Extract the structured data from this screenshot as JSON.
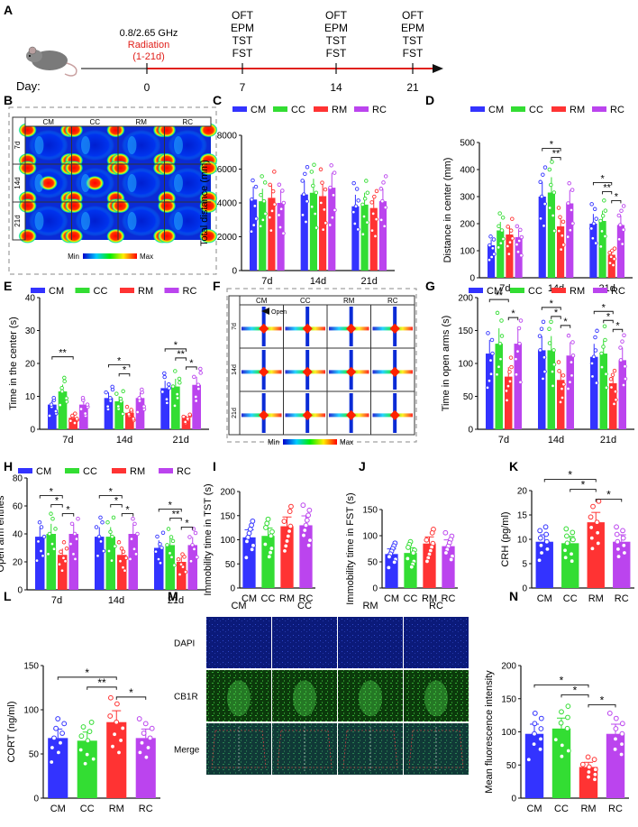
{
  "colors": {
    "CM": "#3333ff",
    "CC": "#33dd33",
    "RM": "#ff3333",
    "RC": "#bb44ee",
    "accent": "#e0201b"
  },
  "groups": [
    "CM",
    "CC",
    "RM",
    "RC"
  ],
  "timeline": {
    "panel_label": "A",
    "day_label": "Day:",
    "freq": "0.8/2.65 GHz",
    "radiation": "Radiation",
    "radiation_days": "(1-21d)",
    "ticks": [
      "0",
      "7",
      "14",
      "21"
    ],
    "tests": [
      "OFT",
      "EPM",
      "TST",
      "FST"
    ]
  },
  "heatmap_B": {
    "panel_label": "B",
    "cols": [
      "CM",
      "CC",
      "RM",
      "RC"
    ],
    "rows": [
      "7d",
      "14d",
      "21d"
    ],
    "legend_min": "Min",
    "legend_max": "Max"
  },
  "maze_F": {
    "panel_label": "F",
    "cols": [
      "CM",
      "CC",
      "RM",
      "RC"
    ],
    "rows": [
      "7d",
      "14d",
      "21d"
    ],
    "open_label": "Open",
    "legend_min": "Min",
    "legend_max": "Max"
  },
  "micro_M": {
    "panel_label": "M",
    "cols": [
      "CM",
      "CC",
      "RM",
      "RC"
    ],
    "rows": [
      "DAPI",
      "CB1R",
      "Merge"
    ]
  },
  "chart_data": [
    {
      "panel": "C",
      "type": "bar",
      "ylabel": "Total distance (mm)",
      "categories": [
        "7d",
        "14d",
        "21d"
      ],
      "ylim": [
        0,
        8000
      ],
      "yticks": [
        0,
        2000,
        4000,
        6000,
        8000
      ],
      "series": [
        {
          "name": "CM",
          "values": [
            4200,
            4500,
            3800
          ]
        },
        {
          "name": "CC",
          "values": [
            4100,
            4600,
            3900
          ]
        },
        {
          "name": "RM",
          "values": [
            4300,
            4400,
            3700
          ]
        },
        {
          "name": "RC",
          "values": [
            4000,
            4900,
            4100
          ]
        }
      ],
      "sig": []
    },
    {
      "panel": "D",
      "type": "bar",
      "ylabel": "Distance in center (mm)",
      "categories": [
        "7d",
        "14d",
        "21d"
      ],
      "ylim": [
        0,
        500
      ],
      "yticks": [
        0,
        100,
        200,
        300,
        400,
        500
      ],
      "series": [
        {
          "name": "CM",
          "values": [
            120,
            300,
            200
          ]
        },
        {
          "name": "CC",
          "values": [
            175,
            315,
            210
          ]
        },
        {
          "name": "RM",
          "values": [
            160,
            190,
            85
          ]
        },
        {
          "name": "RC",
          "values": [
            150,
            275,
            195
          ]
        }
      ],
      "sig": [
        {
          "c": 1,
          "a": 1,
          "b": 2,
          "lvl": 2,
          "t": "**"
        },
        {
          "c": 1,
          "a": 0,
          "b": 2,
          "lvl": 3,
          "t": "*"
        },
        {
          "c": 2,
          "a": 1,
          "b": 2,
          "lvl": 2,
          "t": "**"
        },
        {
          "c": 2,
          "a": 2,
          "b": 3,
          "lvl": 1,
          "t": "*"
        },
        {
          "c": 2,
          "a": 0,
          "b": 2,
          "lvl": 3,
          "t": "*"
        }
      ]
    },
    {
      "panel": "E",
      "type": "bar",
      "ylabel": "Time in the center (s)",
      "categories": [
        "7d",
        "14d",
        "21d"
      ],
      "ylim": [
        0,
        40
      ],
      "yticks": [
        0,
        10,
        20,
        30,
        40
      ],
      "series": [
        {
          "name": "CM",
          "values": [
            7.5,
            9.5,
            12.5
          ]
        },
        {
          "name": "CC",
          "values": [
            11.5,
            8.5,
            13
          ]
        },
        {
          "name": "RM",
          "values": [
            3.5,
            5,
            3.5
          ]
        },
        {
          "name": "RC",
          "values": [
            7.5,
            9.5,
            13.5
          ]
        }
      ],
      "sig": [
        {
          "c": 0,
          "a": 0,
          "b": 2,
          "lvl": 3,
          "t": "**"
        },
        {
          "c": 1,
          "a": 1,
          "b": 2,
          "lvl": 2,
          "t": "*"
        },
        {
          "c": 1,
          "a": 0,
          "b": 2,
          "lvl": 3,
          "t": "*"
        },
        {
          "c": 2,
          "a": 1,
          "b": 2,
          "lvl": 2,
          "t": "**"
        },
        {
          "c": 2,
          "a": 2,
          "b": 3,
          "lvl": 1,
          "t": "*"
        },
        {
          "c": 2,
          "a": 0,
          "b": 2,
          "lvl": 3,
          "t": "*"
        }
      ]
    },
    {
      "panel": "G",
      "type": "bar",
      "ylabel": "Time in open arms (s)",
      "categories": [
        "7d",
        "14d",
        "21d"
      ],
      "ylim": [
        0,
        200
      ],
      "yticks": [
        0,
        50,
        100,
        150,
        200
      ],
      "series": [
        {
          "name": "CM",
          "values": [
            115,
            120,
            110
          ]
        },
        {
          "name": "CC",
          "values": [
            130,
            120,
            115
          ]
        },
        {
          "name": "RM",
          "values": [
            80,
            75,
            70
          ]
        },
        {
          "name": "RC",
          "values": [
            130,
            112,
            105
          ]
        }
      ],
      "sig": [
        {
          "c": 0,
          "a": 2,
          "b": 3,
          "lvl": 1,
          "t": "*"
        },
        {
          "c": 0,
          "a": 0,
          "b": 2,
          "lvl": 3,
          "t": "**"
        },
        {
          "c": 1,
          "a": 1,
          "b": 2,
          "lvl": 2,
          "t": "*"
        },
        {
          "c": 1,
          "a": 2,
          "b": 3,
          "lvl": 1,
          "t": "*"
        },
        {
          "c": 1,
          "a": 0,
          "b": 2,
          "lvl": 3,
          "t": "*"
        },
        {
          "c": 2,
          "a": 1,
          "b": 2,
          "lvl": 2,
          "t": "*"
        },
        {
          "c": 2,
          "a": 2,
          "b": 3,
          "lvl": 1,
          "t": "*"
        },
        {
          "c": 2,
          "a": 0,
          "b": 2,
          "lvl": 3,
          "t": "*"
        }
      ]
    },
    {
      "panel": "H",
      "type": "bar",
      "ylabel": "Open arm entries",
      "categories": [
        "7d",
        "14d",
        "21d"
      ],
      "ylim": [
        0,
        80
      ],
      "yticks": [
        0,
        20,
        40,
        60,
        80
      ],
      "series": [
        {
          "name": "CM",
          "values": [
            38,
            38,
            30
          ]
        },
        {
          "name": "CC",
          "values": [
            40,
            38,
            32
          ]
        },
        {
          "name": "RM",
          "values": [
            25,
            25,
            20
          ]
        },
        {
          "name": "RC",
          "values": [
            40,
            40,
            32
          ]
        }
      ],
      "sig": [
        {
          "c": 0,
          "a": 1,
          "b": 2,
          "lvl": 2,
          "t": "*"
        },
        {
          "c": 0,
          "a": 2,
          "b": 3,
          "lvl": 1,
          "t": "*"
        },
        {
          "c": 0,
          "a": 0,
          "b": 2,
          "lvl": 3,
          "t": "*"
        },
        {
          "c": 1,
          "a": 1,
          "b": 2,
          "lvl": 2,
          "t": "*"
        },
        {
          "c": 1,
          "a": 2,
          "b": 3,
          "lvl": 1,
          "t": "*"
        },
        {
          "c": 1,
          "a": 0,
          "b": 2,
          "lvl": 3,
          "t": "*"
        },
        {
          "c": 2,
          "a": 1,
          "b": 2,
          "lvl": 2,
          "t": "**"
        },
        {
          "c": 2,
          "a": 2,
          "b": 3,
          "lvl": 1,
          "t": "*"
        },
        {
          "c": 2,
          "a": 0,
          "b": 2,
          "lvl": 3,
          "t": "*"
        }
      ]
    },
    {
      "panel": "I",
      "type": "bar",
      "ylabel": "Immobility time in TST (s)",
      "categories": [
        "CM",
        "CC",
        "RM",
        "RC"
      ],
      "ylim": [
        0,
        200
      ],
      "yticks": [
        0,
        50,
        100,
        150,
        200
      ],
      "values": [
        105,
        108,
        128,
        130
      ],
      "sig": []
    },
    {
      "panel": "J",
      "type": "bar",
      "ylabel": "Immobility time in FST (s)",
      "categories": [
        "CM",
        "CC",
        "RM",
        "RC"
      ],
      "ylim": [
        0,
        150
      ],
      "yticks": [
        0,
        50,
        100,
        150
      ],
      "values": [
        65,
        67,
        85,
        80
      ],
      "sig": []
    },
    {
      "panel": "K",
      "type": "bar",
      "ylabel": "CRH (pg/ml)",
      "categories": [
        "CM",
        "CC",
        "RM",
        "RC"
      ],
      "ylim": [
        0,
        20
      ],
      "yticks": [
        0,
        5,
        10,
        15,
        20
      ],
      "values": [
        9.5,
        9.2,
        13.5,
        9.5
      ],
      "sig": [
        {
          "a": 2,
          "b": 3,
          "lvl": 1,
          "t": "*"
        },
        {
          "a": 1,
          "b": 2,
          "lvl": 2,
          "t": "*"
        },
        {
          "a": 0,
          "b": 2,
          "lvl": 3,
          "t": "*"
        }
      ]
    },
    {
      "panel": "L",
      "type": "bar",
      "ylabel": "CORT (ng/ml)",
      "categories": [
        "CM",
        "CC",
        "RM",
        "RC"
      ],
      "ylim": [
        0,
        150
      ],
      "yticks": [
        0,
        50,
        100,
        150
      ],
      "values": [
        68,
        65,
        86,
        68
      ],
      "sig": [
        {
          "a": 2,
          "b": 3,
          "lvl": 1,
          "t": "*"
        },
        {
          "a": 1,
          "b": 2,
          "lvl": 2,
          "t": "**"
        },
        {
          "a": 0,
          "b": 2,
          "lvl": 3,
          "t": "*"
        }
      ]
    },
    {
      "panel": "N",
      "type": "bar",
      "ylabel": "Mean fluorescence intensity",
      "categories": [
        "CM",
        "CC",
        "RM",
        "RC"
      ],
      "ylim": [
        0,
        200
      ],
      "yticks": [
        0,
        50,
        100,
        150,
        200
      ],
      "values": [
        97,
        105,
        47,
        97
      ],
      "sig": [
        {
          "a": 2,
          "b": 3,
          "lvl": 1,
          "t": "*"
        },
        {
          "a": 1,
          "b": 2,
          "lvl": 2,
          "t": "*"
        },
        {
          "a": 0,
          "b": 2,
          "lvl": 3,
          "t": "*"
        }
      ]
    }
  ]
}
